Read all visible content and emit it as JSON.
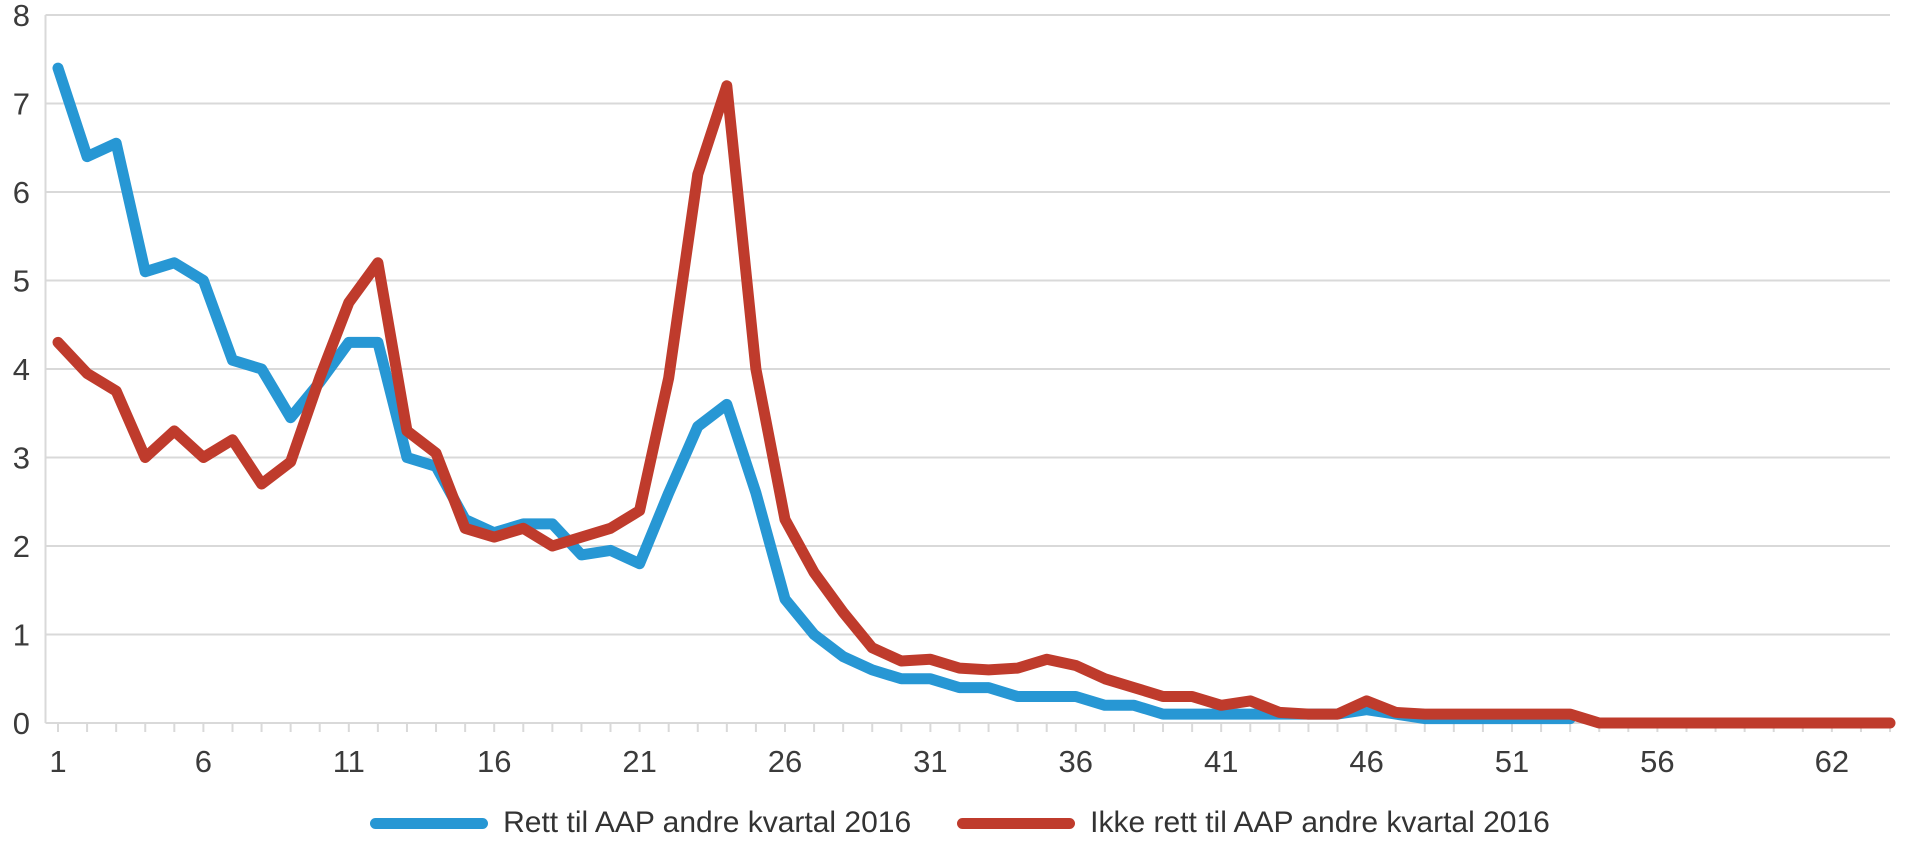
{
  "chart_data": {
    "type": "line",
    "title": "",
    "xlabel": "",
    "ylabel": "",
    "x": [
      1,
      2,
      3,
      4,
      5,
      6,
      7,
      8,
      9,
      10,
      11,
      12,
      13,
      14,
      15,
      16,
      17,
      18,
      19,
      20,
      21,
      22,
      23,
      24,
      25,
      26,
      27,
      28,
      29,
      30,
      31,
      32,
      33,
      34,
      35,
      36,
      37,
      38,
      39,
      40,
      41,
      42,
      43,
      44,
      45,
      46,
      47,
      48,
      49,
      50,
      51,
      52,
      53,
      54,
      55,
      56,
      57,
      58,
      59,
      60,
      61,
      62,
      63,
      64
    ],
    "x_tick_labels": [
      1,
      6,
      11,
      16,
      21,
      26,
      31,
      36,
      41,
      46,
      51,
      56,
      62
    ],
    "y_ticks": [
      0,
      1,
      2,
      3,
      4,
      5,
      6,
      7,
      8
    ],
    "ylim": [
      0,
      8
    ],
    "grid": true,
    "legend_position": "bottom-center",
    "series": [
      {
        "name": "Rett til AAP andre kvartal 2016",
        "color": "#2797D4",
        "values": [
          7.4,
          6.4,
          6.55,
          5.1,
          5.2,
          5.0,
          4.1,
          4.0,
          3.45,
          3.85,
          4.3,
          4.3,
          3.0,
          2.9,
          2.3,
          2.15,
          2.25,
          2.25,
          1.9,
          1.95,
          1.8,
          2.6,
          3.35,
          3.6,
          2.6,
          1.4,
          1.0,
          0.75,
          0.6,
          0.5,
          0.5,
          0.4,
          0.4,
          0.3,
          0.3,
          0.3,
          0.2,
          0.2,
          0.1,
          0.1,
          0.1,
          0.1,
          0.1,
          0.1,
          0.1,
          0.15,
          0.1,
          0.05,
          0.05,
          0.05,
          0.05,
          0.05,
          0.05
        ]
      },
      {
        "name": "Ikke rett til AAP andre kvartal 2016",
        "color": "#BF3B2C",
        "values": [
          4.3,
          3.95,
          3.75,
          3.0,
          3.3,
          3.0,
          3.2,
          2.7,
          2.95,
          3.9,
          4.75,
          5.2,
          3.3,
          3.05,
          2.2,
          2.1,
          2.2,
          2.0,
          2.1,
          2.2,
          2.4,
          3.9,
          6.2,
          7.2,
          4.0,
          2.3,
          1.7,
          1.25,
          0.85,
          0.7,
          0.72,
          0.62,
          0.6,
          0.62,
          0.72,
          0.65,
          0.5,
          0.4,
          0.3,
          0.3,
          0.2,
          0.25,
          0.12,
          0.1,
          0.1,
          0.25,
          0.12,
          0.1,
          0.1,
          0.1,
          0.1,
          0.1,
          0.1,
          0,
          0,
          0,
          0,
          0,
          0,
          0,
          0,
          0,
          0,
          0
        ]
      }
    ],
    "grid_color": "#D9D9D9",
    "axis_label_color": "#3B3B3B"
  }
}
